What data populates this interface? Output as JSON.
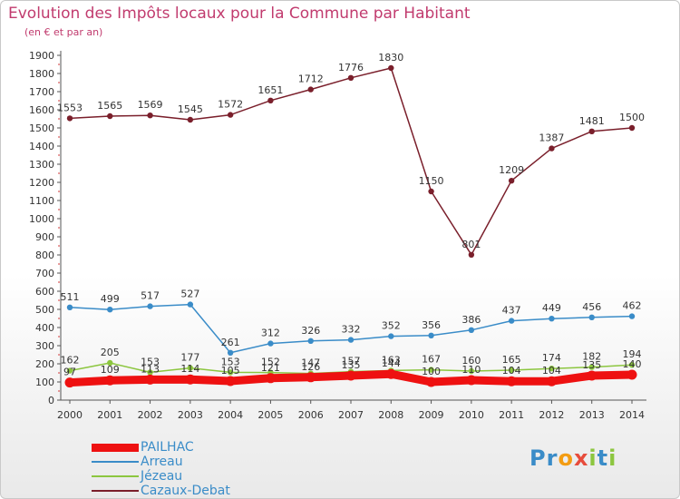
{
  "title": "Evolution des Impôts locaux pour la Commune par Habitant",
  "subtitle": "(en € et par an)",
  "brand": {
    "letters": [
      {
        "ch": "P",
        "color": "#3a8cc8"
      },
      {
        "ch": "r",
        "color": "#3a8cc8"
      },
      {
        "ch": "o",
        "color": "#f39c12"
      },
      {
        "ch": "x",
        "color": "#e74c3c"
      },
      {
        "ch": "i",
        "color": "#8cc63f"
      },
      {
        "ch": "t",
        "color": "#3a8cc8"
      },
      {
        "ch": "i",
        "color": "#8cc63f"
      }
    ]
  },
  "chart_data": {
    "type": "line",
    "x": [
      2000,
      2001,
      2002,
      2003,
      2004,
      2005,
      2006,
      2007,
      2008,
      2009,
      2010,
      2011,
      2012,
      2013,
      2014
    ],
    "ylim": [
      0,
      1900
    ],
    "yticks": [
      0,
      100,
      200,
      300,
      400,
      500,
      600,
      700,
      800,
      900,
      1000,
      1100,
      1200,
      1300,
      1400,
      1500,
      1600,
      1700,
      1800,
      1900
    ],
    "grid": false,
    "legend_position": "bottom-left",
    "series": [
      {
        "name": "Cazaux-Debat",
        "color": "#7a1f2b",
        "width": 1.5,
        "marker": 3.2,
        "values": [
          1553,
          1565,
          1569,
          1545,
          1572,
          1651,
          1712,
          1776,
          1830,
          1150,
          801,
          1209,
          1387,
          1481,
          1500
        ]
      },
      {
        "name": "Arreau",
        "color": "#3a8cc8",
        "width": 1.5,
        "marker": 3.2,
        "values": [
          511,
          499,
          517,
          527,
          261,
          312,
          326,
          332,
          352,
          356,
          386,
          437,
          449,
          456,
          462
        ]
      },
      {
        "name": "Jézeau",
        "color": "#8cc63f",
        "width": 1.5,
        "marker": 3.2,
        "values": [
          162,
          205,
          153,
          177,
          153,
          152,
          147,
          157,
          163,
          167,
          160,
          165,
          174,
          182,
          194
        ]
      },
      {
        "name": "PAILHAC",
        "color": "#ee1111",
        "width": 9,
        "marker": 5.5,
        "values": [
          97,
          109,
          113,
          114,
          105,
          121,
          126,
          135,
          144,
          100,
          110,
          104,
          104,
          135,
          140
        ]
      }
    ],
    "legend_order": [
      "PAILHAC",
      "Arreau",
      "Jézeau",
      "Cazaux-Debat"
    ]
  }
}
